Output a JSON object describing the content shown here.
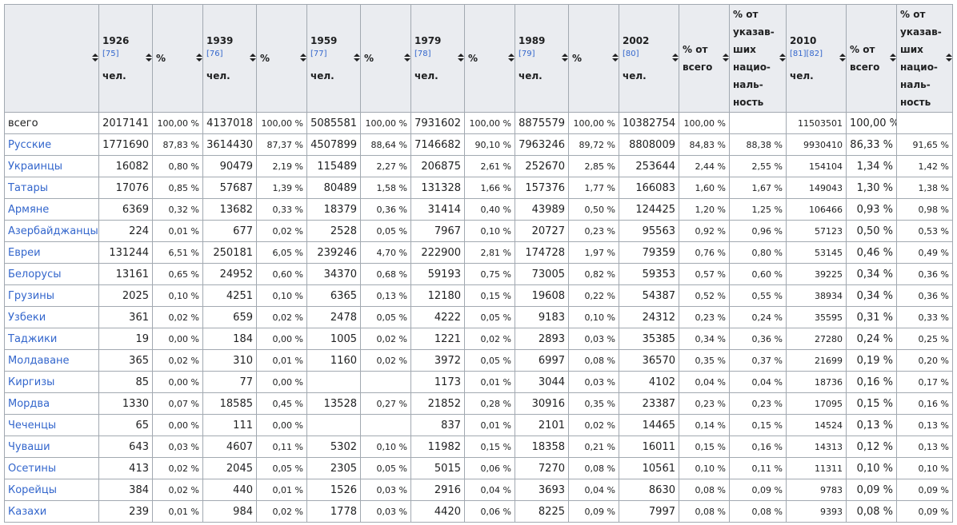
{
  "table": {
    "headers": [
      null,
      {
        "year": "1926",
        "ref": "[75]",
        "unit": "чел."
      },
      {
        "lines": [
          "%"
        ]
      },
      {
        "year": "1939",
        "ref": "[76]",
        "unit": "чел."
      },
      {
        "lines": [
          "%"
        ]
      },
      {
        "year": "1959",
        "ref": "[77]",
        "unit": "чел."
      },
      {
        "lines": [
          "%"
        ]
      },
      {
        "year": "1979",
        "ref": "[78]",
        "unit": "чел."
      },
      {
        "lines": [
          "%"
        ]
      },
      {
        "year": "1989",
        "ref": "[79]",
        "unit": "чел."
      },
      {
        "lines": [
          "%"
        ]
      },
      {
        "year": "2002",
        "ref": "[80]",
        "unit": "чел."
      },
      {
        "lines": [
          "% от",
          "всего"
        ]
      },
      {
        "lines": [
          "% от",
          "указав-",
          "ших",
          "нацио-",
          "наль-",
          "ность"
        ]
      },
      {
        "year": "2010",
        "ref": "[81][82]",
        "unit": "чел."
      },
      {
        "lines": [
          "% от",
          "всего"
        ]
      },
      {
        "lines": [
          "% от",
          "указав-",
          "ших",
          "нацио-",
          "наль-",
          "ность"
        ]
      }
    ],
    "rows": [
      [
        "всего",
        "2017141",
        "100,00 %",
        "4137018",
        "100,00 %",
        "5085581",
        "100,00 %",
        "7931602",
        "100,00 %",
        "8875579",
        "100,00 %",
        "10382754",
        "100,00 %",
        null,
        "11503501",
        "100,00 %",
        null
      ],
      [
        "Русские",
        "1771690",
        "87,83 %",
        "3614430",
        "87,37 %",
        "4507899",
        "88,64 %",
        "7146682",
        "90,10 %",
        "7963246",
        "89,72 %",
        "8808009",
        "84,83 %",
        "88,38 %",
        "9930410",
        "86,33 %",
        "91,65 %"
      ],
      [
        "Украинцы",
        "16082",
        "0,80 %",
        "90479",
        "2,19 %",
        "115489",
        "2,27 %",
        "206875",
        "2,61 %",
        "252670",
        "2,85 %",
        "253644",
        "2,44 %",
        "2,55 %",
        "154104",
        "1,34 %",
        "1,42 %"
      ],
      [
        "Татары",
        "17076",
        "0,85 %",
        "57687",
        "1,39 %",
        "80489",
        "1,58 %",
        "131328",
        "1,66 %",
        "157376",
        "1,77 %",
        "166083",
        "1,60 %",
        "1,67 %",
        "149043",
        "1,30 %",
        "1,38 %"
      ],
      [
        "Армяне",
        "6369",
        "0,32 %",
        "13682",
        "0,33 %",
        "18379",
        "0,36 %",
        "31414",
        "0,40 %",
        "43989",
        "0,50 %",
        "124425",
        "1,20 %",
        "1,25 %",
        "106466",
        "0,93 %",
        "0,98 %"
      ],
      [
        "Азербайджанцы",
        "224",
        "0,01 %",
        "677",
        "0,02 %",
        "2528",
        "0,05 %",
        "7967",
        "0,10 %",
        "20727",
        "0,23 %",
        "95563",
        "0,92 %",
        "0,96 %",
        "57123",
        "0,50 %",
        "0,53 %"
      ],
      [
        "Евреи",
        "131244",
        "6,51 %",
        "250181",
        "6,05 %",
        "239246",
        "4,70 %",
        "222900",
        "2,81 %",
        "174728",
        "1,97 %",
        "79359",
        "0,76 %",
        "0,80 %",
        "53145",
        "0,46 %",
        "0,49 %"
      ],
      [
        "Белорусы",
        "13161",
        "0,65 %",
        "24952",
        "0,60 %",
        "34370",
        "0,68 %",
        "59193",
        "0,75 %",
        "73005",
        "0,82 %",
        "59353",
        "0,57 %",
        "0,60 %",
        "39225",
        "0,34 %",
        "0,36 %"
      ],
      [
        "Грузины",
        "2025",
        "0,10 %",
        "4251",
        "0,10 %",
        "6365",
        "0,13 %",
        "12180",
        "0,15 %",
        "19608",
        "0,22 %",
        "54387",
        "0,52 %",
        "0,55 %",
        "38934",
        "0,34 %",
        "0,36 %"
      ],
      [
        "Узбеки",
        "361",
        "0,02 %",
        "659",
        "0,02 %",
        "2478",
        "0,05 %",
        "4222",
        "0,05 %",
        "9183",
        "0,10 %",
        "24312",
        "0,23 %",
        "0,24 %",
        "35595",
        "0,31 %",
        "0,33 %"
      ],
      [
        "Таджики",
        "19",
        "0,00 %",
        "184",
        "0,00 %",
        "1005",
        "0,02 %",
        "1221",
        "0,02 %",
        "2893",
        "0,03 %",
        "35385",
        "0,34 %",
        "0,36 %",
        "27280",
        "0,24 %",
        "0,25 %"
      ],
      [
        "Молдаване",
        "365",
        "0,02 %",
        "310",
        "0,01 %",
        "1160",
        "0,02 %",
        "3972",
        "0,05 %",
        "6997",
        "0,08 %",
        "36570",
        "0,35 %",
        "0,37 %",
        "21699",
        "0,19 %",
        "0,20 %"
      ],
      [
        "Киргизы",
        "85",
        "0,00 %",
        "77",
        "0,00 %",
        null,
        null,
        "1173",
        "0,01 %",
        "3044",
        "0,03 %",
        "4102",
        "0,04 %",
        "0,04 %",
        "18736",
        "0,16 %",
        "0,17 %"
      ],
      [
        "Мордва",
        "1330",
        "0,07 %",
        "18585",
        "0,45 %",
        "13528",
        "0,27 %",
        "21852",
        "0,28 %",
        "30916",
        "0,35 %",
        "23387",
        "0,23 %",
        "0,23 %",
        "17095",
        "0,15 %",
        "0,16 %"
      ],
      [
        "Чеченцы",
        "65",
        "0,00 %",
        "111",
        "0,00 %",
        null,
        null,
        "837",
        "0,01 %",
        "2101",
        "0,02 %",
        "14465",
        "0,14 %",
        "0,15 %",
        "14524",
        "0,13 %",
        "0,13 %"
      ],
      [
        "Чуваши",
        "643",
        "0,03 %",
        "4607",
        "0,11 %",
        "5302",
        "0,10 %",
        "11982",
        "0,15 %",
        "18358",
        "0,21 %",
        "16011",
        "0,15 %",
        "0,16 %",
        "14313",
        "0,12 %",
        "0,13 %"
      ],
      [
        "Осетины",
        "413",
        "0,02 %",
        "2045",
        "0,05 %",
        "2305",
        "0,05 %",
        "5015",
        "0,06 %",
        "7270",
        "0,08 %",
        "10561",
        "0,10 %",
        "0,11 %",
        "11311",
        "0,10 %",
        "0,10 %"
      ],
      [
        "Корейцы",
        "384",
        "0,02 %",
        "440",
        "0,01 %",
        "1526",
        "0,03 %",
        "2916",
        "0,04 %",
        "3693",
        "0,04 %",
        "8630",
        "0,08 %",
        "0,09 %",
        "9783",
        "0,09 %",
        "0,09 %"
      ],
      [
        "Казахи",
        "239",
        "0,01 %",
        "984",
        "0,02 %",
        "1778",
        "0,03 %",
        "4420",
        "0,06 %",
        "8225",
        "0,09 %",
        "7997",
        "0,08 %",
        "0,08 %",
        "9393",
        "0,08 %",
        "0,09 %"
      ]
    ]
  }
}
